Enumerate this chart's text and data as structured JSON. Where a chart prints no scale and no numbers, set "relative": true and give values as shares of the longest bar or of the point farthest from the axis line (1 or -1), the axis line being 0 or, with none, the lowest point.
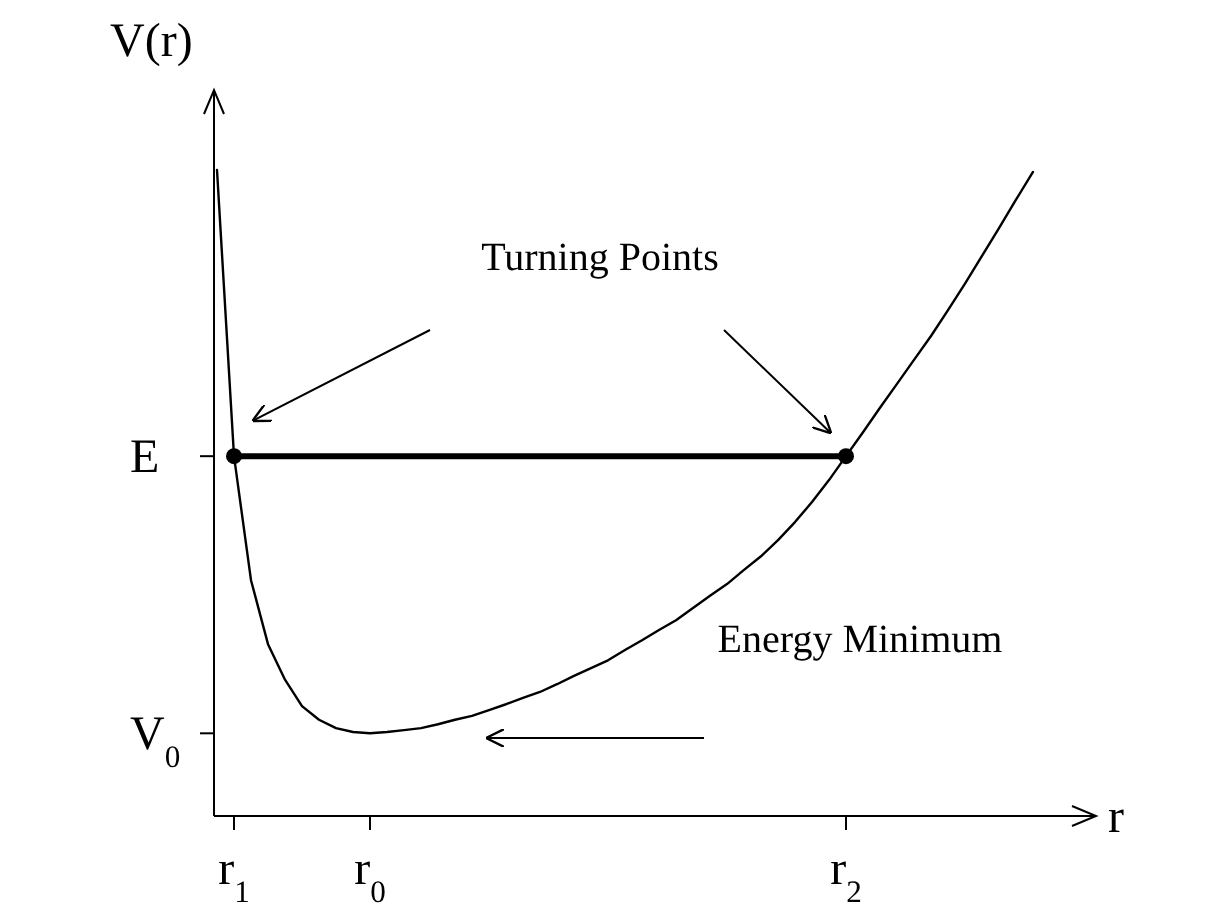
{
  "chart_data": {
    "type": "line",
    "relative": true,
    "xlabel": "r",
    "ylabel": "V(r)",
    "categories": [
      null,
      "r$_{1}$",
      null,
      null,
      null,
      null,
      null,
      null,
      null,
      "r$_{0}$",
      null,
      null,
      null,
      null,
      null,
      null,
      null,
      null,
      null,
      null,
      null,
      null,
      null,
      null,
      null,
      null,
      null,
      null,
      null,
      null,
      null,
      null,
      null,
      null,
      null,
      null,
      null,
      "r$_{2}$",
      null,
      null,
      null,
      null,
      null,
      null,
      null,
      null,
      null,
      null,
      null
    ],
    "series": [
      {
        "type": "line",
        "color": "#000000",
        "values": [
          1.0,
          0.557,
          0.365,
          0.266,
          0.211,
          0.17,
          0.149,
          0.136,
          0.13,
          0.128,
          0.13,
          0.133,
          0.136,
          0.142,
          0.149,
          0.155,
          0.164,
          0.173,
          0.183,
          0.192,
          0.204,
          0.217,
          0.229,
          0.241,
          0.257,
          0.272,
          0.288,
          0.303,
          0.322,
          0.341,
          0.359,
          0.381,
          0.402,
          0.427,
          0.455,
          0.486,
          0.52,
          0.557,
          0.594,
          0.632,
          0.669,
          0.706,
          0.743,
          0.783,
          0.824,
          0.867,
          0.91,
          0.954,
          0.997
        ]
      },
      {
        "type": "line",
        "color": "#000000",
        "values": [
          null,
          0.557,
          0.557,
          0.557,
          0.557,
          0.557,
          0.557,
          0.557,
          0.557,
          0.557,
          0.557,
          0.557,
          0.557,
          0.557,
          0.557,
          0.557,
          0.557,
          0.557,
          0.557,
          0.557,
          0.557,
          0.557,
          0.557,
          0.557,
          0.557,
          0.557,
          0.557,
          0.557,
          0.557,
          0.557,
          0.557,
          0.557,
          0.557,
          0.557,
          0.557,
          0.557,
          0.557,
          0.557,
          null,
          null,
          null,
          null,
          null,
          null,
          null,
          null,
          null,
          null,
          null
        ]
      },
      {
        "type": "scatter",
        "color": "#000000",
        "values": [
          null,
          0.557,
          null,
          null,
          null,
          null,
          null,
          null,
          null,
          null,
          null,
          null,
          null,
          null,
          null,
          null,
          null,
          null,
          null,
          null,
          null,
          null,
          null,
          null,
          null,
          null,
          null,
          null,
          null,
          null,
          null,
          null,
          null,
          null,
          null,
          null,
          null,
          0.557,
          null,
          null,
          null,
          null,
          null,
          null,
          null,
          null,
          null,
          null,
          null
        ]
      }
    ],
    "annotations": [
      "E",
      "V$_{0}$",
      "Turning Points",
      "Energy Minimum"
    ]
  }
}
